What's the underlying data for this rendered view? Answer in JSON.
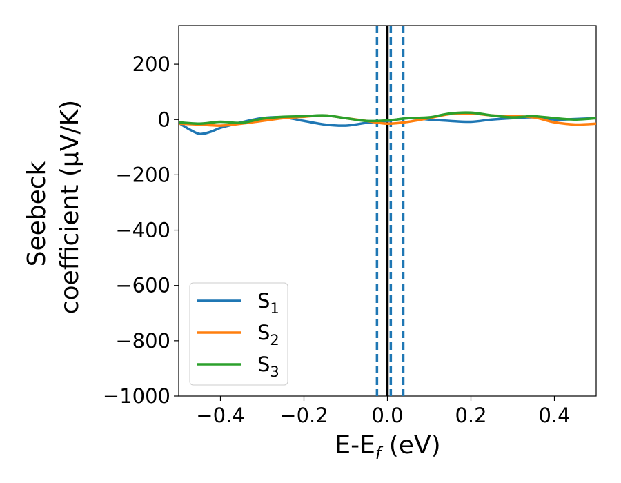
{
  "chart_data": {
    "type": "line",
    "xlabel": {
      "base": "E-E",
      "sub": "f",
      "rest": " (eV)"
    },
    "ylabel": {
      "line1": "Seebeck",
      "line2": "coefficient  (μV/K)"
    },
    "xlim": [
      -0.5,
      0.5
    ],
    "ylim": [
      -1000,
      340
    ],
    "xticks": [
      -0.4,
      -0.2,
      0.0,
      0.2,
      0.4
    ],
    "xtick_labels": [
      "−0.4",
      "−0.2",
      "0.0",
      "0.2",
      "0.4"
    ],
    "yticks": [
      200,
      0,
      -200,
      -400,
      -600,
      -800,
      -1000
    ],
    "ytick_labels": [
      "200",
      "0",
      "−200",
      "−400",
      "−600",
      "−800",
      "−1000"
    ],
    "vlines": [
      {
        "x": 0.0,
        "style": "solid",
        "color": "#000000"
      },
      {
        "x": -0.025,
        "style": "dashed",
        "color": "#1f77b4"
      },
      {
        "x": 0.008,
        "style": "dashed",
        "color": "#1f77b4"
      },
      {
        "x": 0.038,
        "style": "dashed",
        "color": "#1f77b4"
      }
    ],
    "legend_position": "lower-left",
    "grid": false,
    "series": [
      {
        "name": "S",
        "sub": "1",
        "color": "#1f77b4",
        "x": [
          -0.5,
          -0.475,
          -0.45,
          -0.425,
          -0.4,
          -0.375,
          -0.35,
          -0.3,
          -0.25,
          -0.2,
          -0.15,
          -0.1,
          -0.05,
          0.0,
          0.05,
          0.1,
          0.15,
          0.2,
          0.25,
          0.3,
          0.35,
          0.4,
          0.45,
          0.5
        ],
        "values": [
          -12,
          -35,
          -52,
          -45,
          -30,
          -20,
          -10,
          5,
          8,
          -5,
          -18,
          -22,
          -12,
          -5,
          5,
          0,
          -5,
          -8,
          0,
          5,
          8,
          0,
          2,
          5
        ]
      },
      {
        "name": "S",
        "sub": "2",
        "color": "#ff7f0e",
        "x": [
          -0.5,
          -0.45,
          -0.4,
          -0.35,
          -0.3,
          -0.25,
          -0.2,
          -0.15,
          -0.1,
          -0.05,
          0.0,
          0.05,
          0.1,
          0.15,
          0.2,
          0.25,
          0.3,
          0.35,
          0.4,
          0.45,
          0.5
        ],
        "values": [
          -15,
          -18,
          -22,
          -15,
          -5,
          5,
          10,
          15,
          5,
          -5,
          -15,
          -8,
          5,
          20,
          22,
          15,
          12,
          8,
          -10,
          -18,
          -15
        ]
      },
      {
        "name": "S",
        "sub": "3",
        "color": "#2ca02c",
        "x": [
          -0.5,
          -0.45,
          -0.4,
          -0.35,
          -0.3,
          -0.25,
          -0.2,
          -0.15,
          -0.1,
          -0.05,
          0.0,
          0.05,
          0.1,
          0.15,
          0.2,
          0.25,
          0.3,
          0.35,
          0.4,
          0.45,
          0.5
        ],
        "values": [
          -10,
          -15,
          -8,
          -12,
          3,
          10,
          12,
          15,
          5,
          -5,
          -3,
          5,
          8,
          22,
          25,
          15,
          8,
          12,
          5,
          0,
          5
        ]
      }
    ]
  }
}
